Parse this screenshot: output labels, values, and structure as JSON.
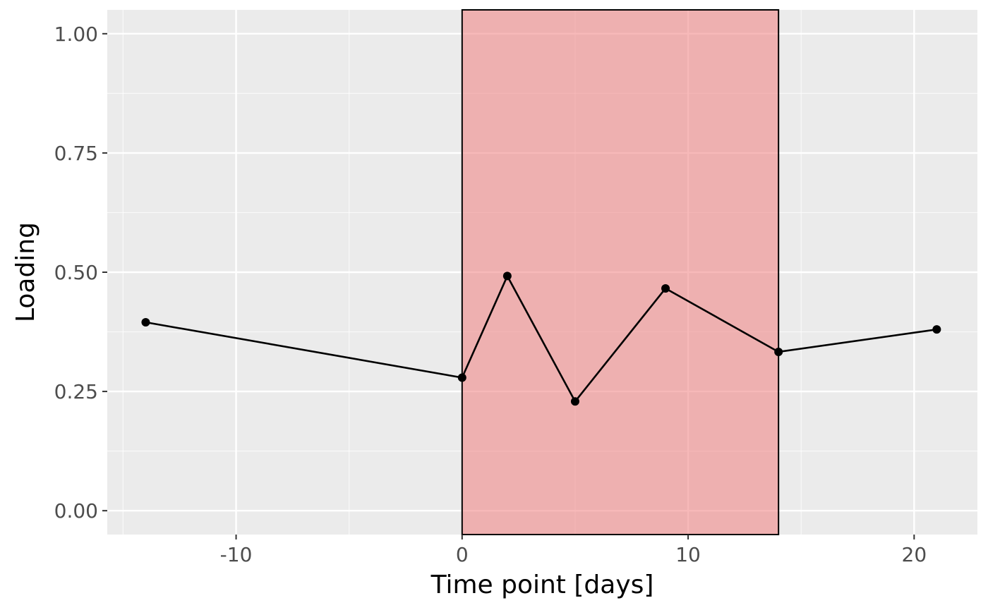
{
  "chart_data": {
    "type": "line",
    "xlabel": "Time point [days]",
    "ylabel": "Loading",
    "xlim": [
      -15.7,
      22.8
    ],
    "ylim": [
      -0.05,
      1.05
    ],
    "x_ticks": [
      -10,
      0,
      10,
      20
    ],
    "x_tick_labels": [
      "-10",
      "0",
      "10",
      "20"
    ],
    "y_ticks": [
      0.0,
      0.25,
      0.5,
      0.75,
      1.0
    ],
    "y_tick_labels": [
      "0.00",
      "0.25",
      "0.50",
      "0.75",
      "1.00"
    ],
    "x_minor_ticks": [
      -15,
      -5,
      5,
      15
    ],
    "y_minor_ticks": [
      0.125,
      0.375,
      0.625,
      0.875
    ],
    "grid": true,
    "highlight_interval": {
      "x_start": 0,
      "x_end": 14,
      "color": "#f08080"
    },
    "series": [
      {
        "points": [
          {
            "x": -14,
            "y": 0.395
          },
          {
            "x": 0,
            "y": 0.279
          },
          {
            "x": 2,
            "y": 0.492
          },
          {
            "x": 5,
            "y": 0.229
          },
          {
            "x": 9,
            "y": 0.466
          },
          {
            "x": 14,
            "y": 0.333
          },
          {
            "x": 21,
            "y": 0.38
          }
        ]
      }
    ],
    "colors": {
      "panel_background": "#ebebeb",
      "grid_major": "#ffffff",
      "line": "#000000",
      "tick_text": "#4d4d4d"
    }
  }
}
